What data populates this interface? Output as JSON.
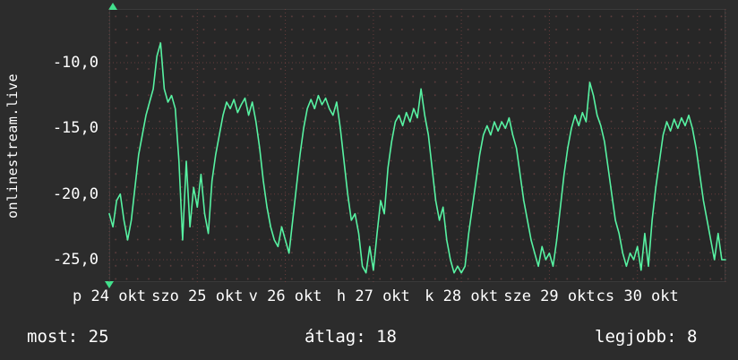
{
  "page": {
    "background_color": "#2c2c2c",
    "text_color": "#ffffff"
  },
  "chart_data": {
    "type": "line",
    "side_title": "onlinestream.live",
    "line_color": "#57f2a2",
    "grid_major_color": "#8a4848",
    "arrow_color": "#42e08c",
    "y_ticks": [
      -10,
      -15,
      -20,
      -25
    ],
    "y_tick_labels": [
      "-10,0",
      "-15,0",
      "-20,0",
      "-25,0"
    ],
    "ylim": [
      -26.8,
      -5.9
    ],
    "x_tick_labels": [
      "p 24 okt",
      "szo 25 okt",
      "v 26 okt",
      "h 27 okt",
      "k 28 okt",
      "sze 29 okt",
      "cs 30 okt"
    ],
    "x_range_days": 7,
    "points_per_day": 24,
    "values": [
      -21.5,
      -22.5,
      -20.5,
      -20,
      -22,
      -23.5,
      -22,
      -19.5,
      -17,
      -15.5,
      -14,
      -13,
      -12,
      -9.5,
      -8.5,
      -12,
      -13,
      -12.5,
      -13.5,
      -17.5,
      -23.5,
      -17.5,
      -22.5,
      -19.5,
      -21,
      -18.5,
      -21.5,
      -23,
      -19,
      -17,
      -15.5,
      -14,
      -13,
      -13.5,
      -12.8,
      -13.8,
      -13.2,
      -12.7,
      -14,
      -13,
      -14.5,
      -16.5,
      -19,
      -21,
      -22.5,
      -23.5,
      -24,
      -22.5,
      -23.5,
      -24.5,
      -22,
      -19.5,
      -17,
      -15,
      -13.5,
      -12.8,
      -13.5,
      -12.5,
      -13.2,
      -12.7,
      -13.5,
      -14,
      -13,
      -15,
      -17.5,
      -20,
      -22,
      -21.5,
      -23,
      -25.5,
      -26,
      -24,
      -25.8,
      -23,
      -20.5,
      -21.5,
      -18,
      -16,
      -14.5,
      -14,
      -14.8,
      -13.8,
      -14.5,
      -13.5,
      -14.2,
      -12,
      -14,
      -15.5,
      -18,
      -20.5,
      -22,
      -21,
      -23.5,
      -25,
      -26,
      -25.5,
      -26,
      -25.5,
      -23,
      -21,
      -19,
      -17,
      -15.5,
      -14.8,
      -15.5,
      -14.5,
      -15.2,
      -14.5,
      -15,
      -14.2,
      -15.5,
      -16.5,
      -18.5,
      -20.5,
      -22,
      -23.5,
      -24.5,
      -25.5,
      -24,
      -25,
      -24.5,
      -25.5,
      -23.5,
      -21,
      -18.5,
      -16.5,
      -15,
      -14,
      -14.8,
      -13.8,
      -14.5,
      -11.5,
      -12.5,
      -14,
      -14.8,
      -16,
      -18,
      -20,
      -22,
      -23,
      -24.5,
      -25.5,
      -24.5,
      -25,
      -24,
      -25.8,
      -23,
      -25.5,
      -22,
      -19.5,
      -17.5,
      -15.5,
      -14.5,
      -15.2,
      -14.3,
      -15,
      -14.2,
      -14.8,
      -14,
      -15,
      -16.5,
      -18.5,
      -20.5,
      -22,
      -23.5,
      -25,
      -23,
      -25,
      -25
    ],
    "stats": {
      "most": 25,
      "atlag": 18,
      "legjobb": 8
    }
  },
  "footer": {
    "most": "most: 25",
    "atlag": "átlag: 18",
    "legjobb": "legjobb: 8"
  }
}
